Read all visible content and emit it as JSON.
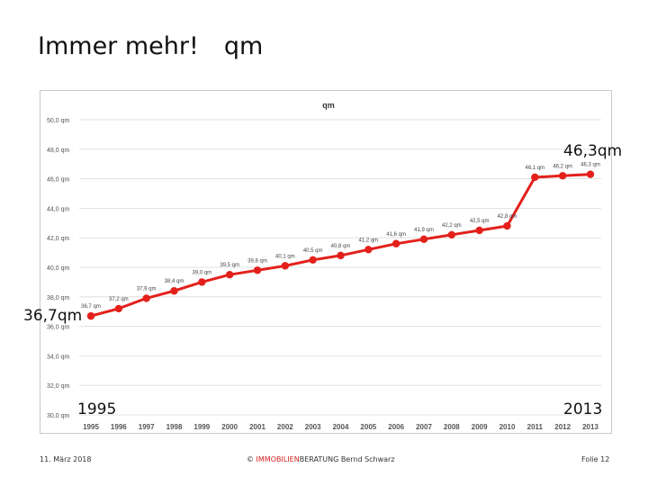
{
  "slide": {
    "title": "Immer mehr!",
    "title_unit": "qm"
  },
  "callouts": {
    "end_value": "46,3qm",
    "start_value": "36,7qm",
    "start_year": "1995",
    "end_year": "2013"
  },
  "footer": {
    "date": "11. März 2018",
    "copyright_symbol": "©",
    "brand": "IMMOBILIEN",
    "company": "BERATUNG  Bernd Schwarz",
    "slide_number": "Folie 12"
  },
  "colors": {
    "series": "#e3201b",
    "grid": "#d9d9d9",
    "axis_text": "#555555"
  },
  "chart_data": {
    "type": "line",
    "title": "qm",
    "xlabel": "",
    "ylabel": "",
    "ylim": [
      30,
      50
    ],
    "y_ticks": [
      30,
      32,
      34,
      36,
      38,
      40,
      42,
      44,
      46,
      48,
      50
    ],
    "y_tick_labels": [
      "30,0 qm",
      "32,0 qm",
      "34,0 qm",
      "36,0 qm",
      "38,0 qm",
      "40,0 qm",
      "42,0 qm",
      "44,0 qm",
      "46,0 qm",
      "48,0 qm",
      "50,0 qm"
    ],
    "grid": true,
    "x": [
      "1995",
      "1996",
      "1997",
      "1998",
      "1999",
      "2000",
      "2001",
      "2002",
      "2003",
      "2004",
      "2005",
      "2006",
      "2007",
      "2008",
      "2009",
      "2010",
      "2011",
      "2012",
      "2013"
    ],
    "series": [
      {
        "values": [
          36.7,
          37.2,
          37.9,
          38.4,
          39.0,
          39.5,
          39.8,
          40.1,
          40.5,
          40.8,
          41.2,
          41.6,
          41.9,
          42.2,
          42.5,
          42.8,
          46.1,
          46.2,
          46.3
        ],
        "labels": [
          "36,7 qm",
          "37,2 qm",
          "37,9 qm",
          "38,4 qm",
          "39,0 qm",
          "39,5 qm",
          "39,8 qm",
          "40,1 qm",
          "40,5 qm",
          "40,8 qm",
          "41,2 qm",
          "41,6 qm",
          "41,9 qm",
          "42,2 qm",
          "42,5 qm",
          "42,8 qm",
          "46,1 qm",
          "46,2 qm",
          "46,3 qm"
        ]
      }
    ]
  }
}
